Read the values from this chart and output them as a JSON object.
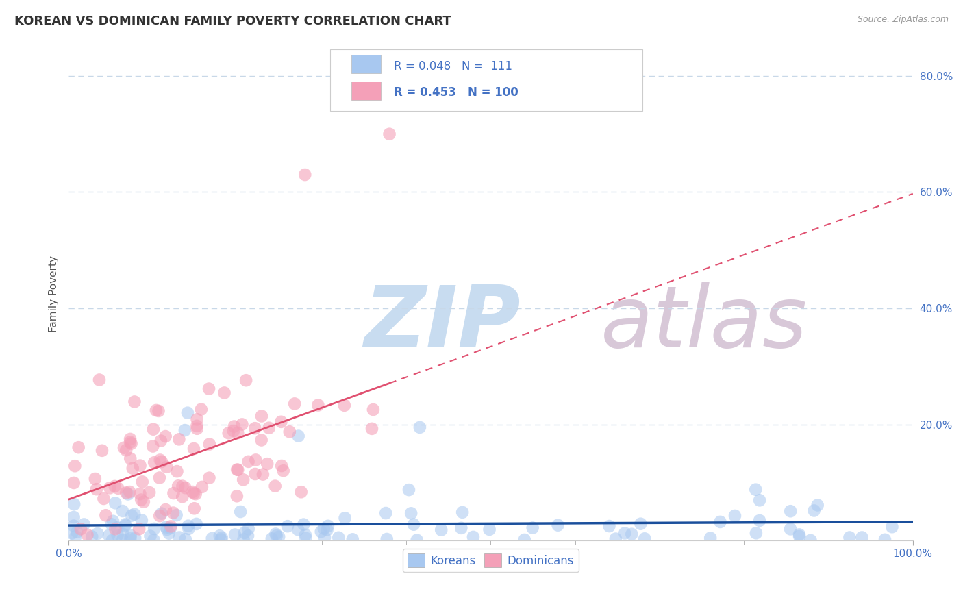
{
  "title": "KOREAN VS DOMINICAN FAMILY POVERTY CORRELATION CHART",
  "source": "Source: ZipAtlas.com",
  "ylabel": "Family Poverty",
  "legend_korean": "Koreans",
  "legend_dominican": "Dominicans",
  "korean_R": 0.048,
  "korean_N": 111,
  "dominican_R": 0.453,
  "dominican_N": 100,
  "korean_color": "#A8C8F0",
  "dominican_color": "#F4A0B8",
  "korean_line_color": "#1A4F9C",
  "dominican_line_color": "#E05070",
  "watermark_zip_color": "#C8DCF0",
  "watermark_atlas_color": "#D8C8D8",
  "background_color": "#FFFFFF",
  "xlim": [
    0,
    1
  ],
  "ylim": [
    0,
    0.85
  ],
  "yticks": [
    0.2,
    0.4,
    0.6,
    0.8
  ],
  "ytick_labels": [
    "20.0%",
    "40.0%",
    "60.0%",
    "80.0%"
  ],
  "grid_color": "#C8D8E8",
  "title_color": "#333333",
  "title_fontsize": 13,
  "tick_color": "#4472C4",
  "tick_fontsize": 11,
  "axis_label_color": "#555555",
  "axis_label_fontsize": 11
}
